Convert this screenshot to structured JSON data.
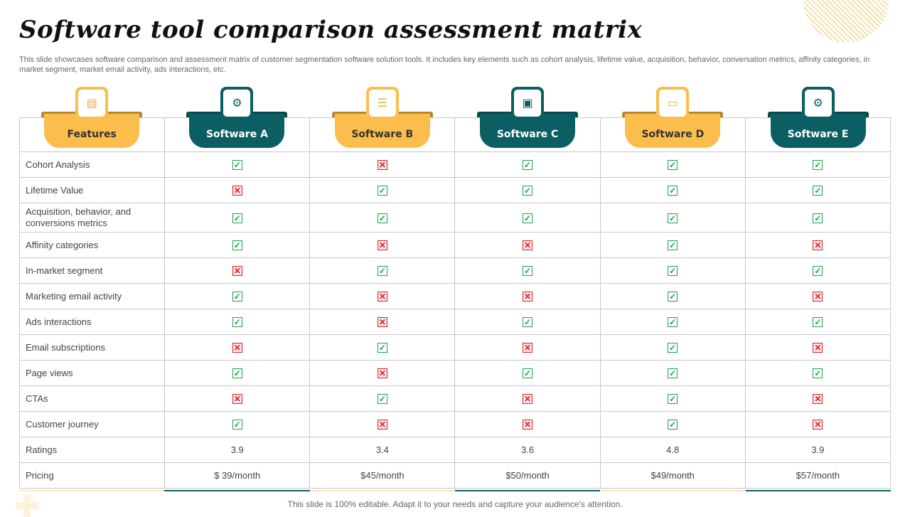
{
  "title": "Software tool comparison assessment matrix",
  "description": "This slide showcases software comparison and assessment matrix of customer segmentation software solution tools. It includes key elements such as cohort analysis, lifetime value, acquisition, behavior, conversation metrics, affinity categories, in market segment, market email activity, ads interactions, etc.",
  "columns": [
    {
      "label": "Features",
      "style": "yellow",
      "icon": "presentation-board-icon"
    },
    {
      "label": "Software A",
      "style": "teal",
      "icon": "monitor-code-gear-icon"
    },
    {
      "label": "Software B",
      "style": "yellow",
      "icon": "list-window-icon"
    },
    {
      "label": "Software C",
      "style": "teal",
      "icon": "browser-window-icon"
    },
    {
      "label": "Software D",
      "style": "yellow",
      "icon": "card-window-icon"
    },
    {
      "label": "Software E",
      "style": "teal",
      "icon": "code-settings-icon"
    }
  ],
  "colors": {
    "yellow": "#FBBD4C",
    "teal": "#0B5F63",
    "check": "#1AA34A",
    "cross": "#D4202A"
  },
  "rows": [
    {
      "feature": "Cohort Analysis",
      "values": [
        true,
        false,
        true,
        true,
        true
      ]
    },
    {
      "feature": "Lifetime Value",
      "values": [
        false,
        true,
        true,
        true,
        true
      ]
    },
    {
      "feature": "Acquisition, behavior,  and conversions  metrics",
      "values": [
        true,
        true,
        true,
        true,
        true
      ]
    },
    {
      "feature": "Affinity categories",
      "values": [
        true,
        false,
        false,
        true,
        false
      ]
    },
    {
      "feature": "In-market  segment",
      "values": [
        false,
        true,
        true,
        true,
        true
      ]
    },
    {
      "feature": "Marketing email activity",
      "values": [
        true,
        false,
        false,
        true,
        false
      ]
    },
    {
      "feature": "Ads interactions",
      "values": [
        true,
        false,
        true,
        true,
        true
      ]
    },
    {
      "feature": "Email subscriptions",
      "values": [
        false,
        true,
        false,
        true,
        false
      ]
    },
    {
      "feature": "Page views",
      "values": [
        true,
        false,
        true,
        true,
        true
      ]
    },
    {
      "feature": "CTAs",
      "values": [
        false,
        true,
        false,
        true,
        false
      ]
    },
    {
      "feature": "Customer journey",
      "values": [
        true,
        false,
        false,
        true,
        false
      ]
    }
  ],
  "ratings": {
    "label": "Ratings",
    "values": [
      "3.9",
      "3.4",
      "3.6",
      "4.8",
      "3.9"
    ]
  },
  "pricing": {
    "label": "Pricing",
    "values": [
      "$ 39/month",
      "$45/month",
      "$50/month",
      "$49/month",
      "$57/month"
    ]
  },
  "footer": "This slide is 100% editable. Adapt it to your needs and capture your audience's attention."
}
